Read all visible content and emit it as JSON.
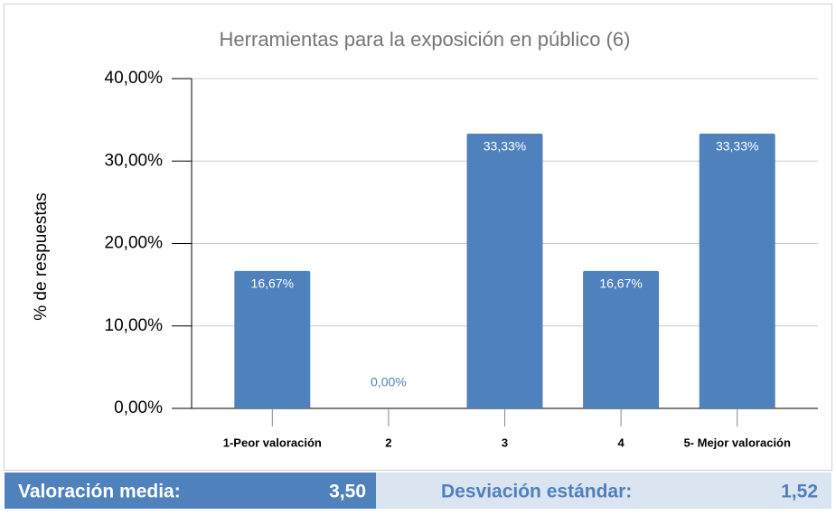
{
  "chart_data": {
    "type": "bar",
    "title": "Herramientas para la exposición en público (6)",
    "ylabel": "% de respuestas",
    "categories": [
      "1-Peor valoración",
      "2",
      "3",
      "4",
      "5- Mejor valoración"
    ],
    "values": [
      16.67,
      0,
      33.33,
      16.67,
      33.33
    ],
    "value_labels": [
      "16,67%",
      "0,00%",
      "33,33%",
      "16,67%",
      "33,33%"
    ],
    "color": "#4f81bd",
    "ylim": [
      0,
      40
    ],
    "yticks": [
      {
        "value": 0,
        "label": "0,00%"
      },
      {
        "value": 10,
        "label": "10,00%"
      },
      {
        "value": 20,
        "label": "20,00%"
      },
      {
        "value": 30,
        "label": "30,00%"
      },
      {
        "value": 40,
        "label": "40,00%"
      }
    ],
    "grid": true
  },
  "footer": [
    {
      "label": "Valoración media:",
      "value": "3,50"
    },
    {
      "label": "Desviación estándar:",
      "value": "1,52"
    }
  ]
}
